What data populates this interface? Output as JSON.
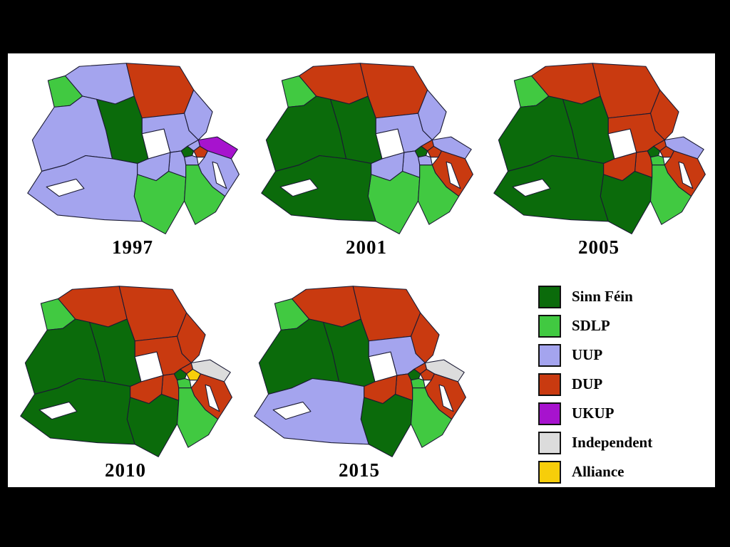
{
  "panel": {
    "page_background": "#000000",
    "panel_background": "#ffffff",
    "border_color": "#1a1a33"
  },
  "parties": {
    "sinn_fein": {
      "label": "Sinn Féin",
      "color": "#0b6b0b"
    },
    "sdlp": {
      "label": "SDLP",
      "color": "#41c941"
    },
    "uup": {
      "label": "UUP",
      "color": "#a4a4ee"
    },
    "dup": {
      "label": "DUP",
      "color": "#c93a10"
    },
    "ukup": {
      "label": "UKUP",
      "color": "#a713ce"
    },
    "independent": {
      "label": "Independent",
      "color": "#dcdcdc"
    },
    "alliance": {
      "label": "Alliance",
      "color": "#f7ce0a"
    }
  },
  "legend_order": [
    "sinn_fein",
    "sdlp",
    "uup",
    "dup",
    "ukup",
    "independent",
    "alliance"
  ],
  "maps": [
    {
      "year": "1997",
      "results": {
        "foyle": "sdlp",
        "east_londonderry": "uup",
        "north_antrim": "dup",
        "east_antrim": "uup",
        "south_antrim": "uup",
        "belfast_north": "uup",
        "belfast_east": "dup",
        "belfast_west": "sinn_fein",
        "belfast_south": "uup",
        "north_down": "ukup",
        "strangford": "uup",
        "lagan_valley": "uup",
        "upper_bann": "uup",
        "newry_armagh": "sdlp",
        "south_down": "sdlp",
        "mid_ulster": "sinn_fein",
        "west_tyrone": "uup",
        "fermanagh_south_tyrone": "uup"
      }
    },
    {
      "year": "2001",
      "results": {
        "foyle": "sdlp",
        "east_londonderry": "dup",
        "north_antrim": "dup",
        "east_antrim": "uup",
        "south_antrim": "uup",
        "belfast_north": "dup",
        "belfast_east": "dup",
        "belfast_west": "sinn_fein",
        "belfast_south": "uup",
        "north_down": "uup",
        "strangford": "dup",
        "lagan_valley": "uup",
        "upper_bann": "uup",
        "newry_armagh": "sdlp",
        "south_down": "sdlp",
        "mid_ulster": "sinn_fein",
        "west_tyrone": "sinn_fein",
        "fermanagh_south_tyrone": "sinn_fein"
      }
    },
    {
      "year": "2005",
      "results": {
        "foyle": "sdlp",
        "east_londonderry": "dup",
        "north_antrim": "dup",
        "east_antrim": "dup",
        "south_antrim": "dup",
        "belfast_north": "dup",
        "belfast_east": "dup",
        "belfast_west": "sinn_fein",
        "belfast_south": "sdlp",
        "north_down": "uup",
        "strangford": "dup",
        "lagan_valley": "dup",
        "upper_bann": "dup",
        "newry_armagh": "sinn_fein",
        "south_down": "sdlp",
        "mid_ulster": "sinn_fein",
        "west_tyrone": "sinn_fein",
        "fermanagh_south_tyrone": "sinn_fein"
      }
    },
    {
      "year": "2010",
      "results": {
        "foyle": "sdlp",
        "east_londonderry": "dup",
        "north_antrim": "dup",
        "east_antrim": "dup",
        "south_antrim": "dup",
        "belfast_north": "dup",
        "belfast_east": "alliance",
        "belfast_west": "sinn_fein",
        "belfast_south": "sdlp",
        "north_down": "independent",
        "strangford": "dup",
        "lagan_valley": "dup",
        "upper_bann": "dup",
        "newry_armagh": "sinn_fein",
        "south_down": "sdlp",
        "mid_ulster": "sinn_fein",
        "west_tyrone": "sinn_fein",
        "fermanagh_south_tyrone": "sinn_fein"
      }
    },
    {
      "year": "2015",
      "results": {
        "foyle": "sdlp",
        "east_londonderry": "dup",
        "north_antrim": "dup",
        "east_antrim": "dup",
        "south_antrim": "uup",
        "belfast_north": "dup",
        "belfast_east": "dup",
        "belfast_west": "sinn_fein",
        "belfast_south": "sdlp",
        "north_down": "independent",
        "strangford": "dup",
        "lagan_valley": "dup",
        "upper_bann": "dup",
        "newry_armagh": "sinn_fein",
        "south_down": "sdlp",
        "mid_ulster": "sinn_fein",
        "west_tyrone": "sinn_fein",
        "fermanagh_south_tyrone": "uup"
      }
    }
  ]
}
